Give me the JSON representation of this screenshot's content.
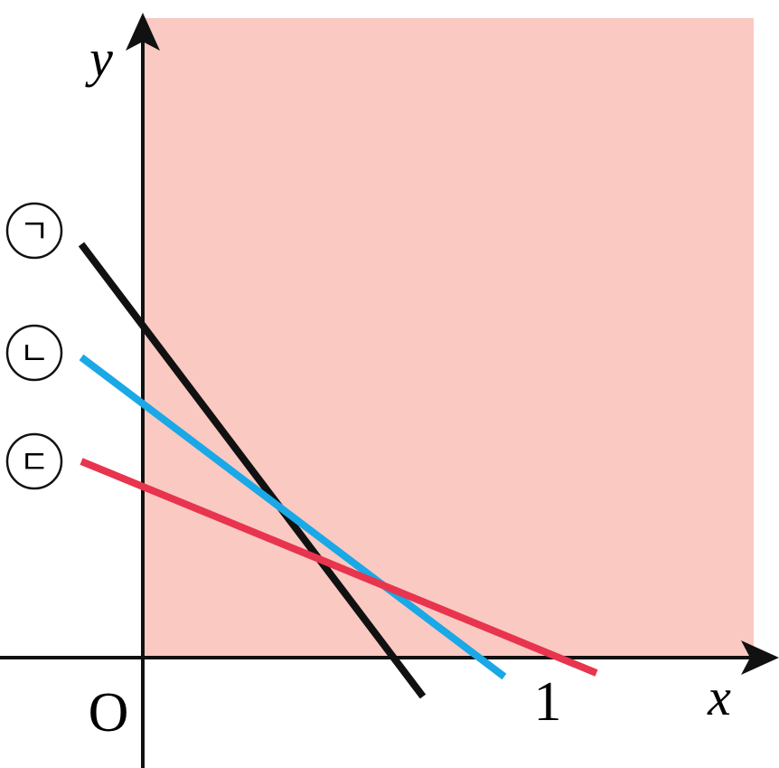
{
  "axes": {
    "x_label": "x",
    "y_label": "y",
    "origin_label": "O",
    "x_tick_label": "1"
  },
  "lines": [
    {
      "label": "ㄱ"
    },
    {
      "label": "ㄴ"
    },
    {
      "label": "ㄷ"
    }
  ]
}
